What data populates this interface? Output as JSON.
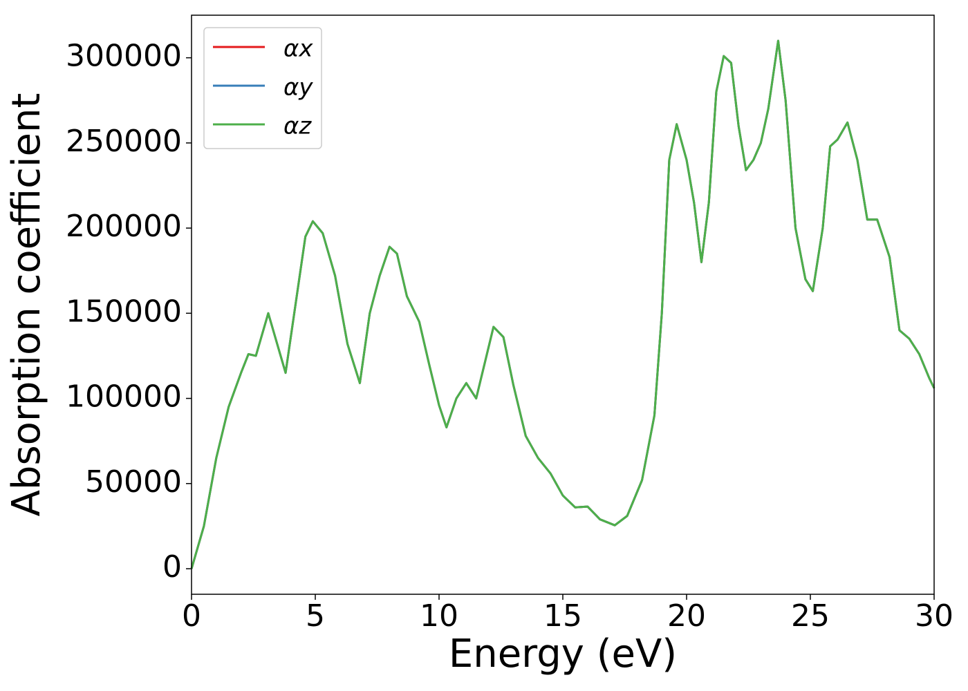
{
  "chart_data": {
    "type": "line",
    "xlabel": "Energy (eV)",
    "ylabel": "Absorption coefficient",
    "x": [
      0,
      0.5,
      1.0,
      1.5,
      2.0,
      2.3,
      2.6,
      3.1,
      3.5,
      3.8,
      4.2,
      4.6,
      4.9,
      5.3,
      5.8,
      6.3,
      6.8,
      7.2,
      7.6,
      8.0,
      8.3,
      8.7,
      9.2,
      9.6,
      10.0,
      10.3,
      10.7,
      11.1,
      11.5,
      12.2,
      12.6,
      13.0,
      13.5,
      14.0,
      14.5,
      15.0,
      15.5,
      16.0,
      16.5,
      17.1,
      17.6,
      18.2,
      18.7,
      19.0,
      19.3,
      19.6,
      20.0,
      20.3,
      20.6,
      20.9,
      21.2,
      21.5,
      21.8,
      22.1,
      22.4,
      22.7,
      23.0,
      23.3,
      23.7,
      24.0,
      24.4,
      24.8,
      25.1,
      25.5,
      25.8,
      26.1,
      26.5,
      26.9,
      27.3,
      27.7,
      28.2,
      28.6,
      29.0,
      29.4,
      29.8,
      30.0
    ],
    "series": [
      {
        "name": "αx",
        "color": "#e41a1c",
        "values": [
          0,
          25000,
          65000,
          95000,
          115000,
          126000,
          125000,
          150000,
          130000,
          115000,
          155000,
          195000,
          204000,
          197000,
          172000,
          132000,
          109000,
          150000,
          172000,
          189000,
          185000,
          160000,
          145000,
          120000,
          96000,
          83000,
          100000,
          109000,
          100000,
          142000,
          136000,
          108000,
          78000,
          65000,
          56000,
          43000,
          36000,
          36500,
          29000,
          25500,
          31000,
          52000,
          90000,
          150000,
          240000,
          261000,
          240000,
          215000,
          180000,
          215000,
          280000,
          301000,
          297000,
          260000,
          234000,
          240000,
          250000,
          270000,
          310000,
          275000,
          200000,
          170000,
          163000,
          200000,
          248000,
          252000,
          262000,
          240000,
          205000,
          205000,
          183000,
          140000,
          135000,
          126000,
          112000,
          106000
        ]
      },
      {
        "name": "αy",
        "color": "#377eb8",
        "values": [
          0,
          25000,
          65000,
          95000,
          115000,
          126000,
          125000,
          150000,
          130000,
          115000,
          155000,
          195000,
          204000,
          197000,
          172000,
          132000,
          109000,
          150000,
          172000,
          189000,
          185000,
          160000,
          145000,
          120000,
          96000,
          83000,
          100000,
          109000,
          100000,
          142000,
          136000,
          108000,
          78000,
          65000,
          56000,
          43000,
          36000,
          36500,
          29000,
          25500,
          31000,
          52000,
          90000,
          150000,
          240000,
          261000,
          240000,
          215000,
          180000,
          215000,
          280000,
          301000,
          297000,
          260000,
          234000,
          240000,
          250000,
          270000,
          310000,
          275000,
          200000,
          170000,
          163000,
          200000,
          248000,
          252000,
          262000,
          240000,
          205000,
          205000,
          183000,
          140000,
          135000,
          126000,
          112000,
          106000
        ]
      },
      {
        "name": "αz",
        "color": "#4daf4a",
        "values": [
          0,
          25000,
          65000,
          95000,
          115000,
          126000,
          125000,
          150000,
          130000,
          115000,
          155000,
          195000,
          204000,
          197000,
          172000,
          132000,
          109000,
          150000,
          172000,
          189000,
          185000,
          160000,
          145000,
          120000,
          96000,
          83000,
          100000,
          109000,
          100000,
          142000,
          136000,
          108000,
          78000,
          65000,
          56000,
          43000,
          36000,
          36500,
          29000,
          25500,
          31000,
          52000,
          90000,
          150000,
          240000,
          261000,
          240000,
          215000,
          180000,
          215000,
          280000,
          301000,
          297000,
          260000,
          234000,
          240000,
          250000,
          270000,
          310000,
          275000,
          200000,
          170000,
          163000,
          200000,
          248000,
          252000,
          262000,
          240000,
          205000,
          205000,
          183000,
          140000,
          135000,
          126000,
          112000,
          106000
        ]
      }
    ],
    "xlim": [
      0,
      30
    ],
    "xticks": [
      0,
      5,
      10,
      15,
      20,
      25,
      30
    ],
    "ylim": [
      -15000,
      325000
    ],
    "yticks": [
      0,
      50000,
      100000,
      150000,
      200000,
      250000,
      300000
    ],
    "grid": false,
    "legend": "upper left"
  }
}
